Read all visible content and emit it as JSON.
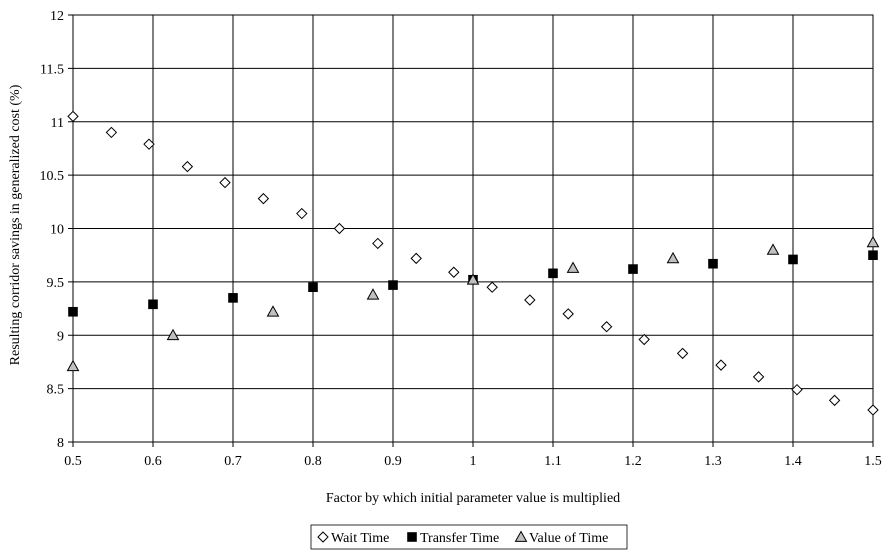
{
  "chart_data": {
    "type": "scatter",
    "title": "",
    "xlabel": "Factor by which initial parameter value is multiplied",
    "ylabel": "Resulting corridor savings in generalized cost (%)",
    "xlim": [
      0.5,
      1.5
    ],
    "ylim": [
      8,
      12
    ],
    "x_ticks": [
      0.5,
      0.6,
      0.7,
      0.8,
      0.9,
      1.0,
      1.1,
      1.2,
      1.3,
      1.4,
      1.5
    ],
    "x_tick_labels": [
      "0.5",
      "0.6",
      "0.7",
      "0.8",
      "0.9",
      "1",
      "1.1",
      "1.2",
      "1.3",
      "1.4",
      "1.5"
    ],
    "y_ticks": [
      8,
      8.5,
      9,
      9.5,
      10,
      10.5,
      11,
      11.5,
      12
    ],
    "y_tick_labels": [
      "8",
      "8.5",
      "9",
      "9.5",
      "10",
      "10.5",
      "11",
      "11.5",
      "12"
    ],
    "grid": true,
    "legend_position": "bottom-center",
    "series": [
      {
        "name": "Wait Time",
        "marker": "diamond-open",
        "x": [
          0.5,
          0.548,
          0.595,
          0.643,
          0.69,
          0.738,
          0.786,
          0.833,
          0.881,
          0.929,
          0.976,
          1.024,
          1.071,
          1.119,
          1.167,
          1.214,
          1.262,
          1.31,
          1.357,
          1.405,
          1.452,
          1.5
        ],
        "y": [
          11.05,
          10.9,
          10.79,
          10.58,
          10.43,
          10.28,
          10.14,
          10.0,
          9.86,
          9.72,
          9.59,
          9.45,
          9.33,
          9.2,
          9.08,
          8.96,
          8.83,
          8.72,
          8.61,
          8.49,
          8.39,
          8.3
        ]
      },
      {
        "name": "Transfer Time",
        "marker": "square-filled",
        "x": [
          0.5,
          0.6,
          0.7,
          0.8,
          0.9,
          1.0,
          1.1,
          1.2,
          1.3,
          1.4,
          1.5
        ],
        "y": [
          9.22,
          9.29,
          9.35,
          9.45,
          9.47,
          9.52,
          9.58,
          9.62,
          9.67,
          9.71,
          9.75
        ]
      },
      {
        "name": "Value of Time",
        "marker": "triangle-gray",
        "x": [
          0.5,
          0.625,
          0.75,
          0.875,
          1.0,
          1.125,
          1.25,
          1.375,
          1.5
        ],
        "y": [
          8.71,
          9.0,
          9.22,
          9.38,
          9.52,
          9.63,
          9.72,
          9.8,
          9.87
        ]
      }
    ],
    "colors": {
      "triangle_fill": "#c0c0c0",
      "square_fill": "#000000",
      "grid": "#000000"
    }
  }
}
